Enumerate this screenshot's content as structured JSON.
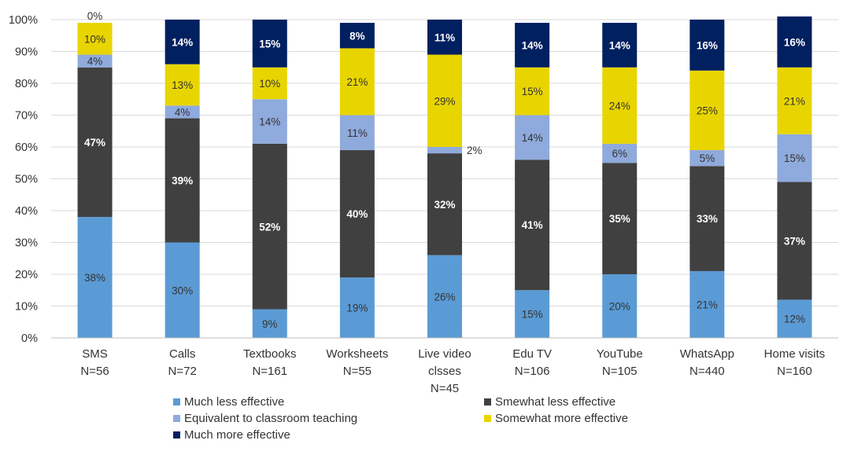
{
  "chart_data": {
    "type": "bar",
    "stacked": true,
    "percent": true,
    "categories": [
      [
        "SMS",
        "N=56"
      ],
      [
        "Calls",
        "N=72"
      ],
      [
        "Textbooks",
        "N=161"
      ],
      [
        "Worksheets",
        "N=55"
      ],
      [
        "Live video",
        "clsses",
        "N=45"
      ],
      [
        "Edu TV",
        "N=106"
      ],
      [
        "YouTube",
        "N=105"
      ],
      [
        "WhatsApp",
        "N=440"
      ],
      [
        "Home visits",
        "N=160"
      ]
    ],
    "ylim": [
      0,
      100
    ],
    "yticks": [
      "0%",
      "10%",
      "20%",
      "30%",
      "40%",
      "50%",
      "60%",
      "70%",
      "80%",
      "90%",
      "100%"
    ],
    "grid": true,
    "legend_position": "bottom",
    "series": [
      {
        "name": "Much less effective",
        "color": "#5b9bd5",
        "label_color": "#333333",
        "values": [
          38,
          30,
          9,
          19,
          26,
          15,
          20,
          21,
          12
        ],
        "labels": [
          "38%",
          "30%",
          "9%",
          "19%",
          "26%",
          "15%",
          "20%",
          "21%",
          "12%"
        ]
      },
      {
        "name": "Smewhat less effective",
        "color": "#404040",
        "label_color": "#ffffff",
        "values": [
          47,
          39,
          52,
          40,
          32,
          41,
          35,
          33,
          37
        ],
        "labels": [
          "47%",
          "39%",
          "52%",
          "40%",
          "32%",
          "41%",
          "35%",
          "33%",
          "37%"
        ]
      },
      {
        "name": "Equivalent to classroom teaching",
        "color": "#8faadc",
        "label_color": "#333333",
        "values": [
          4,
          4,
          14,
          11,
          2,
          14,
          6,
          5,
          15
        ],
        "labels": [
          "4%",
          "4%",
          "14%",
          "11%",
          "2%",
          "14%",
          "6%",
          "5%",
          "15%"
        ]
      },
      {
        "name": "Somewhat more effective",
        "color": "#e8d500",
        "label_color": "#333333",
        "values": [
          10,
          13,
          10,
          21,
          29,
          15,
          24,
          25,
          21
        ],
        "labels": [
          "10%",
          "13%",
          "10%",
          "21%",
          "29%",
          "15%",
          "24%",
          "25%",
          "21%"
        ]
      },
      {
        "name": "Much more effective",
        "color": "#002060",
        "label_color": "#ffffff",
        "values": [
          0,
          14,
          15,
          8,
          11,
          14,
          14,
          16,
          16
        ],
        "labels": [
          "0%",
          "14%",
          "15%",
          "8%",
          "11%",
          "14%",
          "14%",
          "16%",
          "16%"
        ]
      }
    ]
  }
}
